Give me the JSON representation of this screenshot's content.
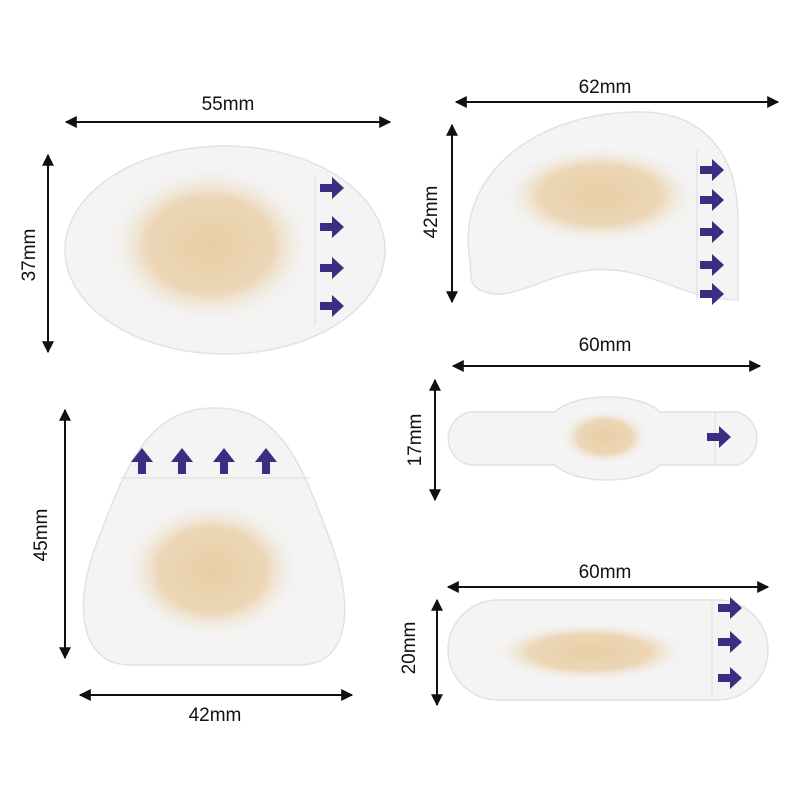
{
  "patches": [
    {
      "width": "55mm",
      "height": "37mm"
    },
    {
      "width": "62mm",
      "height": "42mm"
    },
    {
      "width": "60mm",
      "height": "17mm"
    },
    {
      "width": "60mm",
      "height": "20mm"
    },
    {
      "width": "42mm",
      "height": "45mm"
    }
  ]
}
